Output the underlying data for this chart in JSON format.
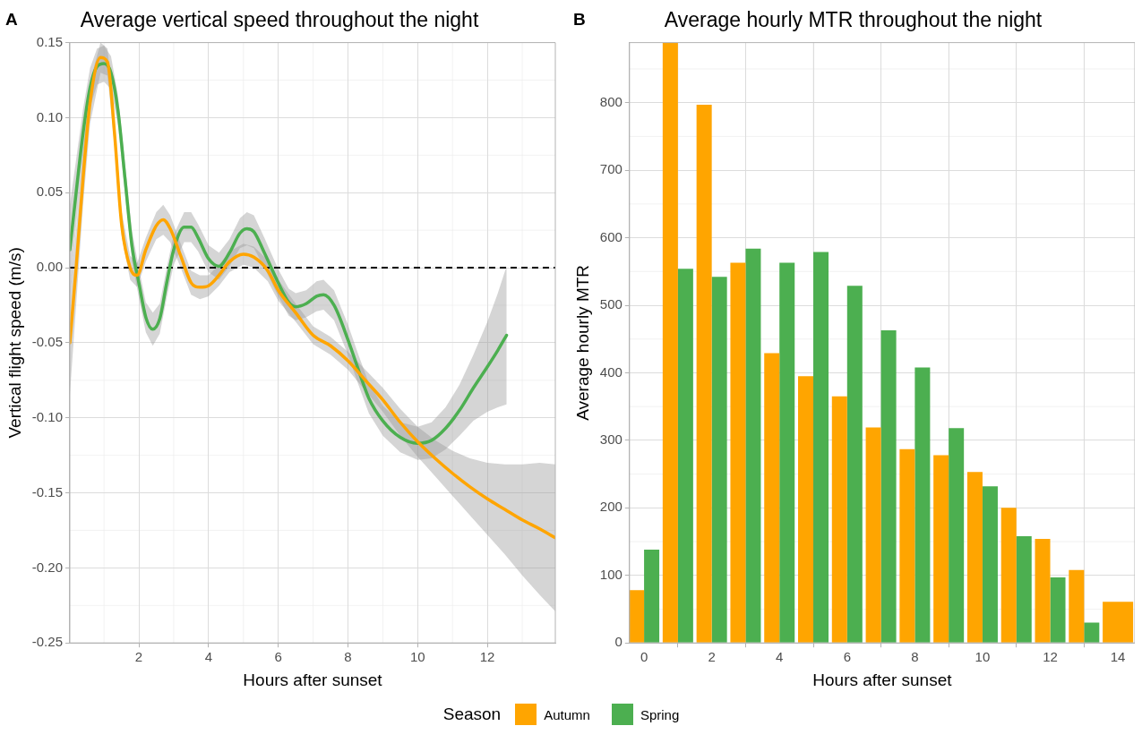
{
  "chart_data": [
    {
      "type": "line",
      "title": "Average vertical speed throughout the night",
      "xlabel": "Hours after sunset",
      "ylabel": "Vertical flight speed (m/s)",
      "annotations": [
        "A"
      ],
      "xlim": [
        0.02,
        13.95
      ],
      "xticks": [
        2,
        4,
        6,
        8,
        10,
        12
      ],
      "ylim": [
        -0.25,
        0.15
      ],
      "yticks": [
        {
          "value": -0.25,
          "label": "-0.25"
        },
        {
          "value": -0.2,
          "label": "-0.20"
        },
        {
          "value": -0.15,
          "label": "-0.15"
        },
        {
          "value": -0.1,
          "label": "-0.10"
        },
        {
          "value": -0.05,
          "label": "-0.05"
        },
        {
          "value": 0,
          "label": "0.00"
        },
        {
          "value": 0.05,
          "label": "0.05"
        },
        {
          "value": 0.1,
          "label": "0.10"
        },
        {
          "value": 0.15,
          "label": "0.15"
        }
      ],
      "grid": true,
      "legend": "bottom",
      "legend_title": "Season",
      "marker": "none",
      "line_style": "solid",
      "ref_lines": [
        {
          "axis": "y",
          "value": 0,
          "color": "#000000",
          "line_style": "dashed"
        }
      ],
      "series": [
        {
          "name": "Autumn",
          "color": "#ffa500",
          "x": [
            0.02,
            0.2,
            0.4,
            0.6,
            0.9,
            1.1,
            1.3,
            1.5,
            1.75,
            1.95,
            2.2,
            2.5,
            2.7,
            2.9,
            3.2,
            3.5,
            3.75,
            4.0,
            4.3,
            4.6,
            5.0,
            5.3,
            5.7,
            6.0,
            6.5,
            7.0,
            7.5,
            8.0,
            8.5,
            9.0,
            9.5,
            10.0,
            10.5,
            11.0,
            11.5,
            12.0,
            12.5,
            13.0,
            13.5,
            13.95
          ],
          "values": [
            -0.05,
            0.0,
            0.06,
            0.11,
            0.14,
            0.137,
            0.09,
            0.03,
            0.0,
            -0.005,
            0.012,
            0.028,
            0.032,
            0.026,
            0.008,
            -0.01,
            -0.013,
            -0.012,
            -0.005,
            0.004,
            0.009,
            0.007,
            -0.002,
            -0.015,
            -0.03,
            -0.045,
            -0.052,
            -0.062,
            -0.075,
            -0.088,
            -0.103,
            -0.116,
            -0.127,
            -0.137,
            -0.146,
            -0.154,
            -0.161,
            -0.168,
            -0.174,
            -0.18
          ],
          "lower": [
            -0.085,
            -0.025,
            0.042,
            0.096,
            0.13,
            0.128,
            0.082,
            0.022,
            -0.008,
            -0.013,
            0.004,
            0.019,
            0.022,
            0.017,
            0.0,
            -0.018,
            -0.021,
            -0.019,
            -0.012,
            -0.003,
            0.002,
            0.0,
            -0.009,
            -0.022,
            -0.036,
            -0.051,
            -0.058,
            -0.068,
            -0.082,
            -0.096,
            -0.112,
            -0.126,
            -0.139,
            -0.152,
            -0.165,
            -0.178,
            -0.191,
            -0.205,
            -0.218,
            -0.229
          ],
          "upper": [
            -0.015,
            0.025,
            0.078,
            0.124,
            0.15,
            0.146,
            0.098,
            0.038,
            0.008,
            0.003,
            0.02,
            0.037,
            0.042,
            0.035,
            0.016,
            -0.002,
            -0.005,
            -0.005,
            0.002,
            0.011,
            0.016,
            0.014,
            0.005,
            -0.008,
            -0.024,
            -0.039,
            -0.046,
            -0.056,
            -0.068,
            -0.08,
            -0.094,
            -0.106,
            -0.115,
            -0.122,
            -0.127,
            -0.13,
            -0.131,
            -0.131,
            -0.13,
            -0.131
          ]
        },
        {
          "name": "Spring",
          "color": "#4caf50",
          "x": [
            0.02,
            0.2,
            0.4,
            0.6,
            0.8,
            1.0,
            1.2,
            1.4,
            1.6,
            1.8,
            2.0,
            2.2,
            2.4,
            2.6,
            2.8,
            3.0,
            3.3,
            3.5,
            3.7,
            4.0,
            4.3,
            4.6,
            4.9,
            5.1,
            5.3,
            5.6,
            6.0,
            6.3,
            6.5,
            6.8,
            7.1,
            7.3,
            7.6,
            8.0,
            8.3,
            8.6,
            9.0,
            9.5,
            10.0,
            10.4,
            10.8,
            11.2,
            11.6,
            12.0,
            12.3,
            12.55
          ],
          "values": [
            0.012,
            0.05,
            0.09,
            0.12,
            0.134,
            0.136,
            0.13,
            0.105,
            0.06,
            0.015,
            -0.01,
            -0.033,
            -0.041,
            -0.034,
            -0.01,
            0.012,
            0.027,
            0.027,
            0.02,
            0.006,
            0.001,
            0.01,
            0.023,
            0.026,
            0.024,
            0.01,
            -0.01,
            -0.023,
            -0.026,
            -0.024,
            -0.019,
            -0.018,
            -0.025,
            -0.048,
            -0.068,
            -0.087,
            -0.102,
            -0.113,
            -0.117,
            -0.115,
            -0.107,
            -0.095,
            -0.08,
            -0.066,
            -0.055,
            -0.045
          ],
          "lower": [
            -0.018,
            0.028,
            0.074,
            0.107,
            0.122,
            0.124,
            0.119,
            0.095,
            0.05,
            0.005,
            -0.02,
            -0.043,
            -0.052,
            -0.044,
            -0.02,
            0.002,
            0.017,
            0.017,
            0.011,
            -0.003,
            -0.008,
            0.001,
            0.013,
            0.015,
            0.013,
            0.0,
            -0.019,
            -0.032,
            -0.035,
            -0.033,
            -0.029,
            -0.028,
            -0.035,
            -0.058,
            -0.078,
            -0.097,
            -0.112,
            -0.123,
            -0.128,
            -0.127,
            -0.121,
            -0.112,
            -0.102,
            -0.096,
            -0.093,
            -0.091
          ],
          "upper": [
            0.042,
            0.072,
            0.106,
            0.133,
            0.146,
            0.148,
            0.141,
            0.115,
            0.07,
            0.025,
            0.0,
            -0.023,
            -0.03,
            -0.024,
            0.0,
            0.022,
            0.037,
            0.037,
            0.029,
            0.015,
            0.01,
            0.019,
            0.033,
            0.037,
            0.035,
            0.02,
            -0.001,
            -0.014,
            -0.017,
            -0.015,
            -0.009,
            -0.008,
            -0.015,
            -0.038,
            -0.058,
            -0.077,
            -0.092,
            -0.103,
            -0.106,
            -0.103,
            -0.093,
            -0.078,
            -0.058,
            -0.036,
            -0.017,
            0.001
          ]
        }
      ]
    },
    {
      "type": "bar",
      "title": "Average hourly MTR throughout the night",
      "xlabel": "Hours after sunset",
      "ylabel": "Average hourly MTR",
      "annotations": [
        "B"
      ],
      "x": [
        0,
        1,
        2,
        3,
        4,
        5,
        6,
        7,
        8,
        9,
        10,
        11,
        12,
        13,
        14
      ],
      "xlim": [
        -0.43,
        14.5
      ],
      "xticks": [
        0,
        2,
        4,
        6,
        8,
        10,
        12,
        14
      ],
      "ylim": [
        0,
        889
      ],
      "yticks": [
        0,
        100,
        200,
        300,
        400,
        500,
        600,
        700,
        800
      ],
      "grid": true,
      "series": [
        {
          "color": "#ffa500",
          "values": [
            78,
            889,
            797,
            563,
            429,
            395,
            365,
            319,
            287,
            278,
            253,
            200,
            154,
            108,
            61
          ]
        },
        {
          "color": "#4caf50",
          "values": [
            138,
            554,
            542,
            584,
            563,
            579,
            529,
            463,
            408,
            318,
            232,
            158,
            97,
            30,
            null
          ]
        }
      ]
    }
  ]
}
